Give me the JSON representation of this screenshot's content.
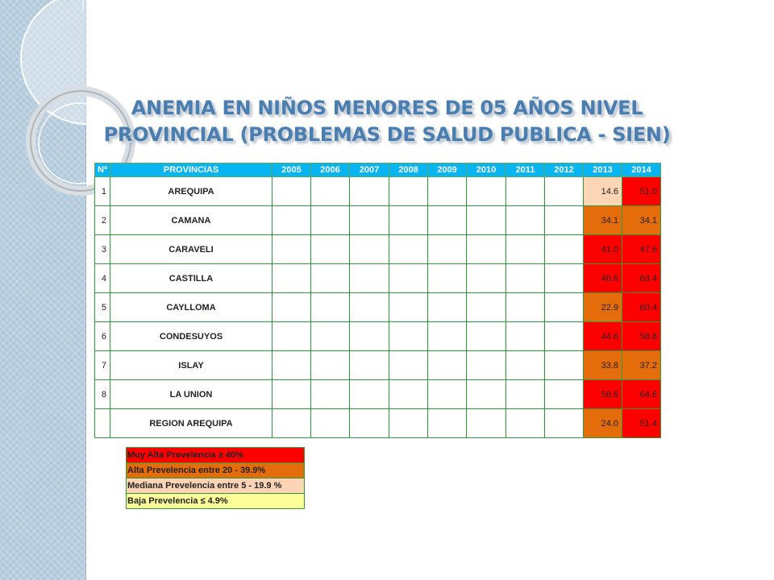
{
  "title": {
    "line1": "ANEMIA EN NIÑOS MENORES DE 05 AÑOS NIVEL",
    "line2": "PROVINCIAL (PROBLEMAS DE SALUD PUBLICA - SIEN)"
  },
  "table": {
    "headers": [
      "Nº",
      "PROVINCIAS",
      "2005",
      "2006",
      "2007",
      "2008",
      "2009",
      "2010",
      "2011",
      "2012",
      "2013",
      "2014"
    ],
    "rows": [
      {
        "num": "1",
        "province": "AREQUIPA",
        "v2013": "14.6",
        "v2014": "51.0"
      },
      {
        "num": "2",
        "province": "CAMANA",
        "v2013": "34.1",
        "v2014": "34.1"
      },
      {
        "num": "3",
        "province": "CARAVELI",
        "v2013": "41.0",
        "v2014": "47.6"
      },
      {
        "num": "4",
        "province": "CASTILLA",
        "v2013": "46.6",
        "v2014": "63.4"
      },
      {
        "num": "5",
        "province": "CAYLLOMA",
        "v2013": "22.9",
        "v2014": "60.4"
      },
      {
        "num": "6",
        "province": "CONDESUYOS",
        "v2013": "44.6",
        "v2014": "58.8"
      },
      {
        "num": "7",
        "province": "ISLAY",
        "v2013": "33.8",
        "v2014": "37.2"
      },
      {
        "num": "8",
        "province": "LA UNION",
        "v2013": "58.6",
        "v2014": "64.6"
      },
      {
        "num": "",
        "province": "REGION AREQUIPA",
        "v2013": "24.0",
        "v2014": "51.4"
      }
    ]
  },
  "legend": [
    {
      "label": "Muy Alta Prevelencia ≥ 40%",
      "color": "#ff0000"
    },
    {
      "label": "Alta Prevelencia entre 20 - 39.9%",
      "color": "#e46c0a"
    },
    {
      "label": "Mediana Prevelencia entre 5 - 19.9 %",
      "color": "#fbd5b5"
    },
    {
      "label": "Baja Prevelencia ≤ 4.9%",
      "color": "#ffff99"
    }
  ]
}
